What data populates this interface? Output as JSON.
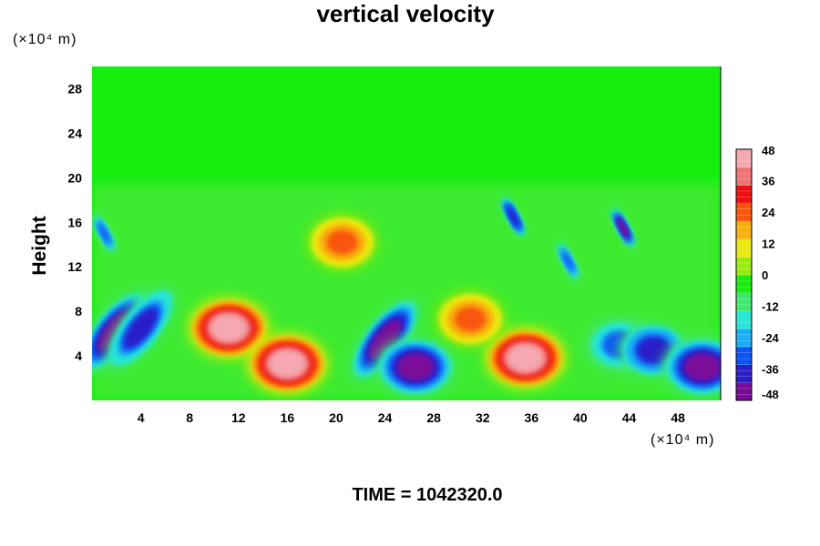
{
  "chart_data": {
    "type": "heatmap",
    "title": "vertical velocity",
    "xlabel": "",
    "ylabel": "Height",
    "x_unit": "(×10⁴ m)",
    "y_unit": "(×10⁴ m)",
    "xlim": [
      0,
      51.5
    ],
    "ylim": [
      0,
      30
    ],
    "x_ticks": [
      4,
      8,
      12,
      16,
      20,
      24,
      28,
      32,
      36,
      40,
      44,
      48
    ],
    "y_ticks": [
      4,
      8,
      12,
      16,
      20,
      24,
      28
    ],
    "colorbar": {
      "range": [
        -48,
        48
      ],
      "ticks": [
        48,
        36,
        24,
        12,
        0,
        -12,
        -24,
        -36,
        -48
      ],
      "colors": [
        "#7a0a9a",
        "#2a1ec8",
        "#0a56f2",
        "#1aaef6",
        "#26e6d6",
        "#3fe86c",
        "#16ee10",
        "#9cea10",
        "#eaea10",
        "#f9b00a",
        "#f9560a",
        "#ee1010",
        "#f07474",
        "#f5a8b0"
      ]
    },
    "features": [
      {
        "x": 1.8,
        "y": 6.2,
        "value": -48,
        "shape": "tilted-blob"
      },
      {
        "x": 4.0,
        "y": 6.5,
        "value": -36,
        "shape": "tilted-blob"
      },
      {
        "x": 11.2,
        "y": 6.5,
        "value": 42,
        "shape": "blob"
      },
      {
        "x": 16.0,
        "y": 3.3,
        "value": 48,
        "shape": "blob"
      },
      {
        "x": 24.0,
        "y": 5.5,
        "value": -48,
        "shape": "tilted-blob"
      },
      {
        "x": 26.5,
        "y": 3.0,
        "value": -44,
        "shape": "blob"
      },
      {
        "x": 35.5,
        "y": 3.8,
        "value": 48,
        "shape": "blob"
      },
      {
        "x": 31.0,
        "y": 7.3,
        "value": 24,
        "shape": "blob"
      },
      {
        "x": 20.5,
        "y": 14.2,
        "value": 24,
        "shape": "blob"
      },
      {
        "x": 43.2,
        "y": 5.0,
        "value": -28,
        "shape": "blob"
      },
      {
        "x": 46.0,
        "y": 4.5,
        "value": -38,
        "shape": "blob"
      },
      {
        "x": 50.0,
        "y": 3.0,
        "value": -42,
        "shape": "blob"
      },
      {
        "x": 43.5,
        "y": 15.5,
        "value": -42,
        "shape": "streak"
      },
      {
        "x": 34.5,
        "y": 16.5,
        "value": -40,
        "shape": "streak"
      },
      {
        "x": 39.0,
        "y": 12.5,
        "value": -30,
        "shape": "streak"
      },
      {
        "x": 1.0,
        "y": 15.0,
        "value": -30,
        "shape": "streak"
      }
    ]
  },
  "footer": {
    "time_label": "TIME = 1042320.0"
  }
}
